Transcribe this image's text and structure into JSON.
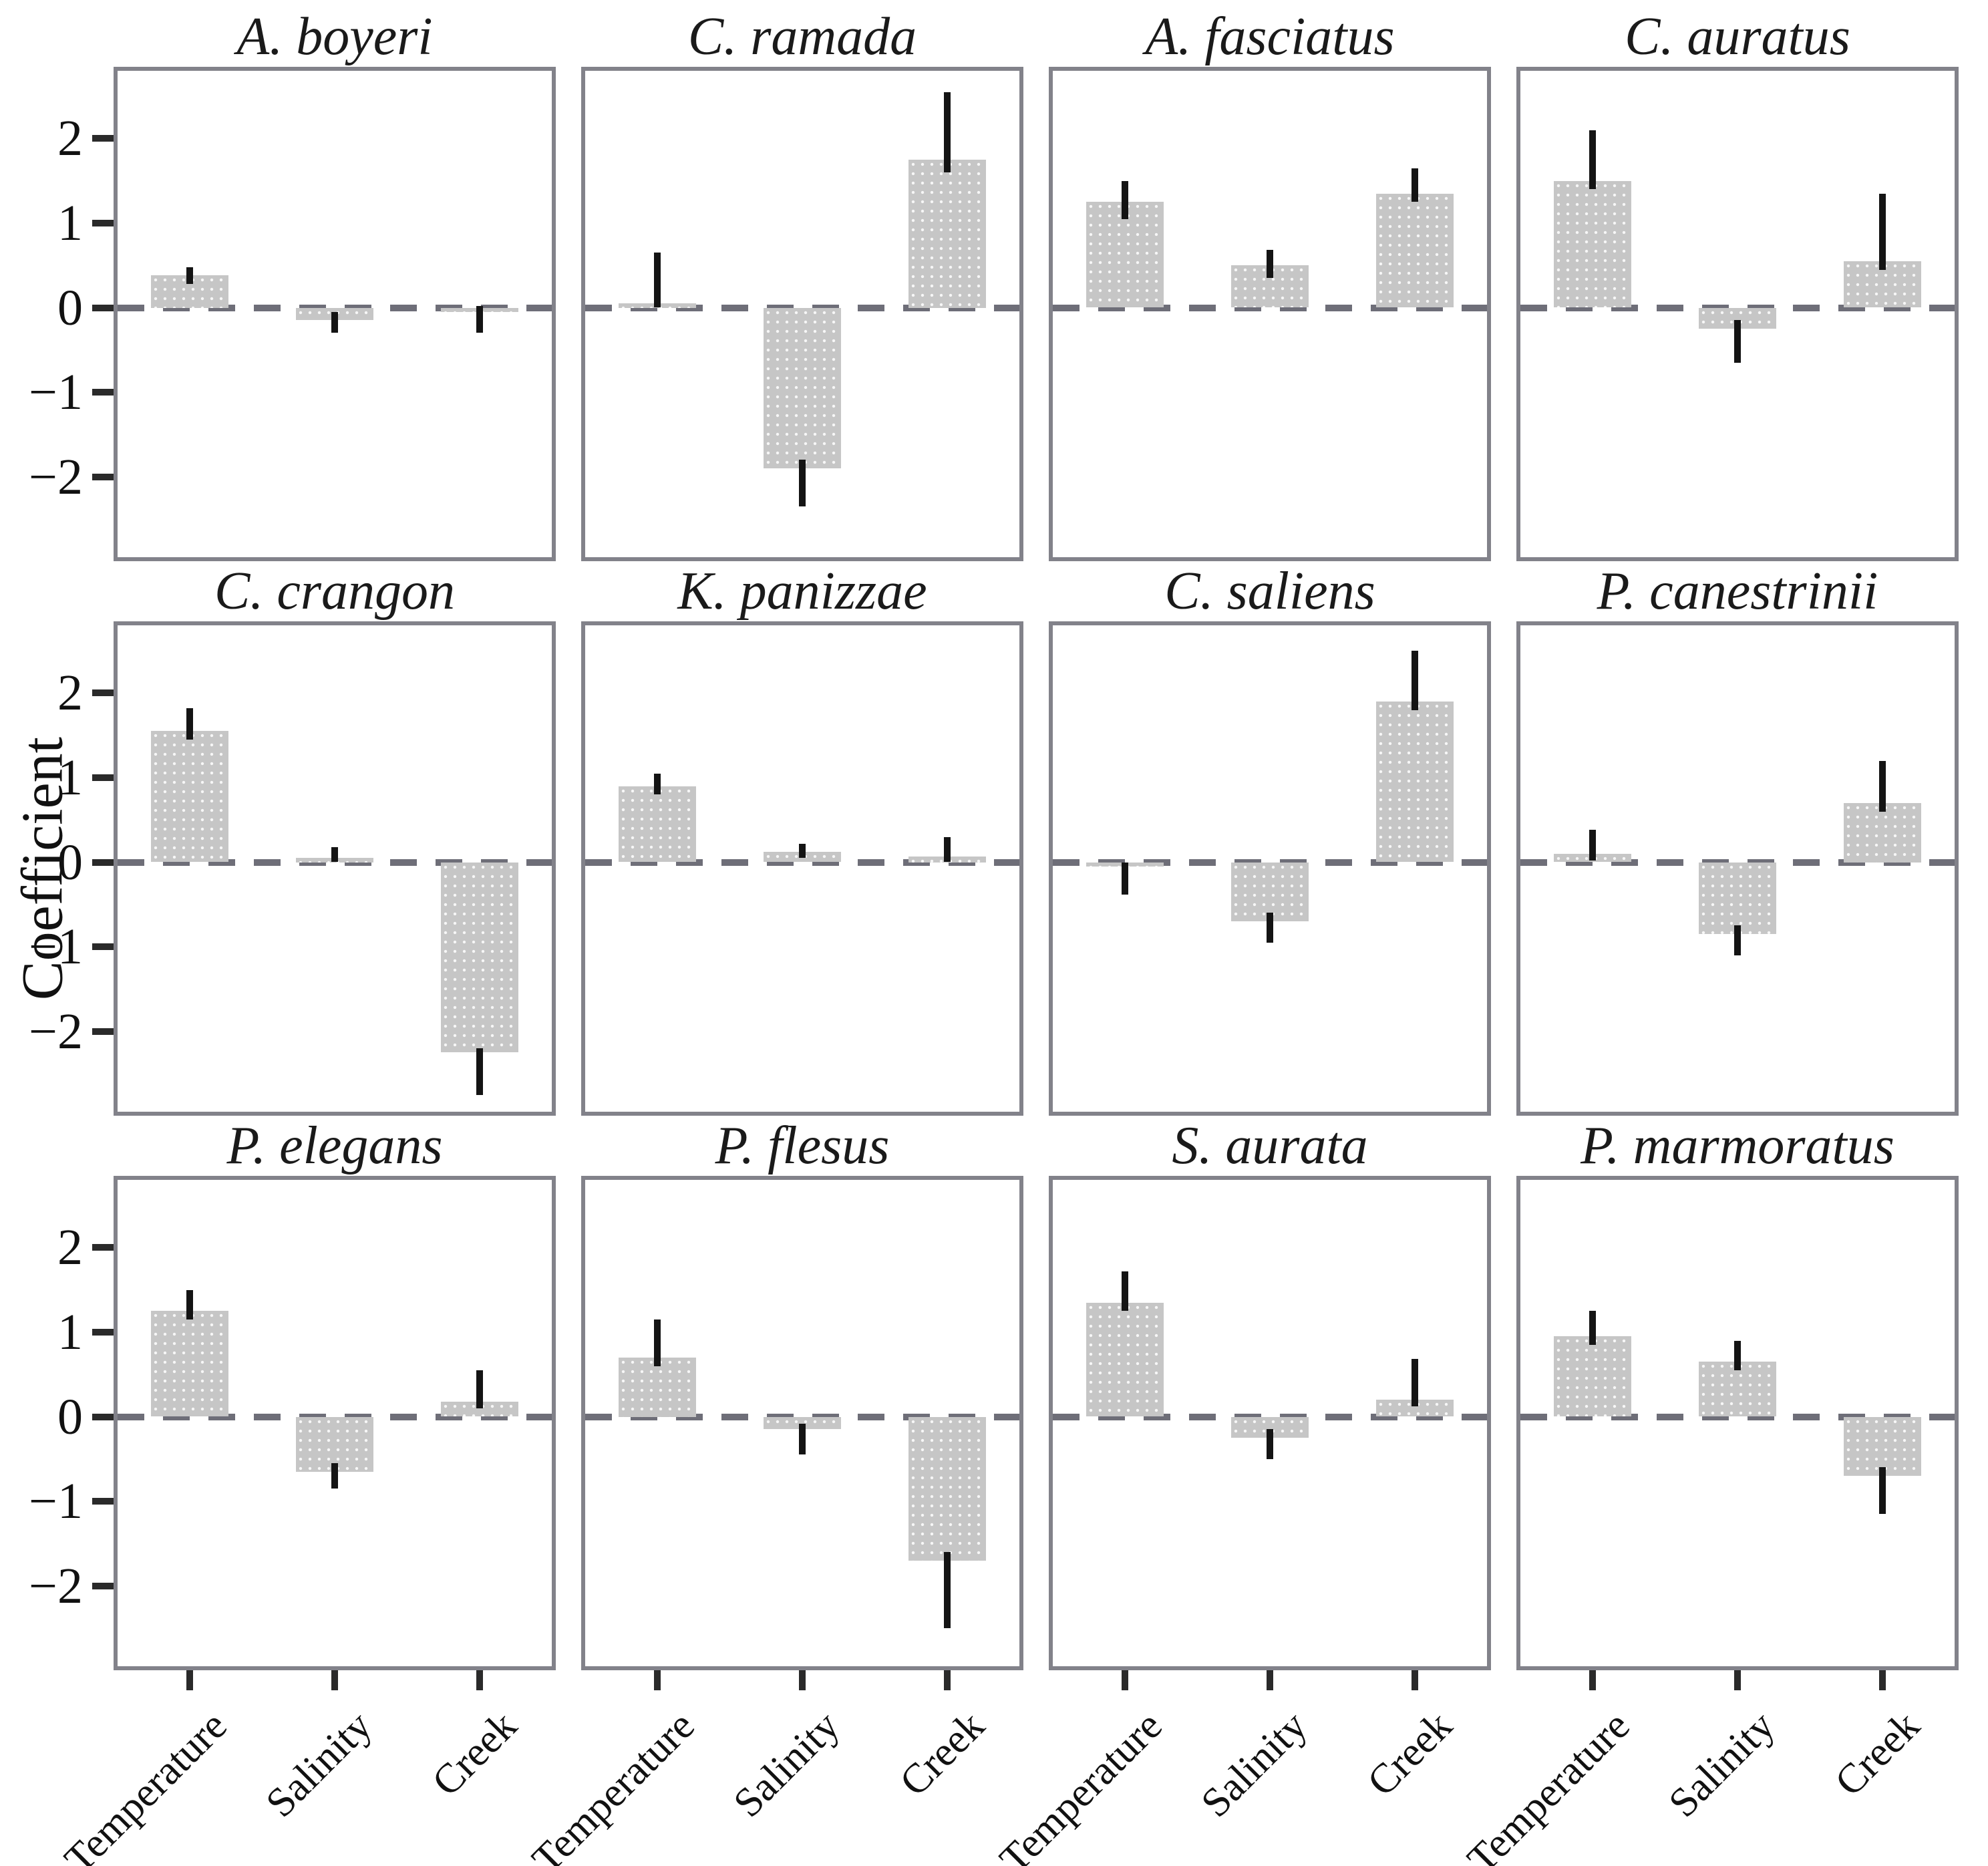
{
  "figure": {
    "ylabel": "Coefficient"
  },
  "chart_data": {
    "type": "bar",
    "title": "",
    "ylabel": "Coefficient",
    "xlabel": "",
    "categories": [
      "Temperature",
      "Salinity",
      "Creek"
    ],
    "layout": {
      "rows": 3,
      "cols": 4,
      "ylim": [
        -2.95,
        2.8
      ],
      "yticks": [
        2,
        1,
        0,
        -1,
        -2
      ],
      "ytick_labels": [
        "2",
        "1",
        "0",
        "−1",
        "−2"
      ],
      "grid": false,
      "zero_line": "dashed",
      "error_bars": true,
      "bar_color": "#c6c6c6",
      "error_color": "#141414",
      "zero_line_color": "#6e6e78",
      "panel_border_color": "#82828a"
    },
    "panels": [
      {
        "title": "A. boyeri",
        "values": [
          0.38,
          -0.15,
          -0.05
        ],
        "ci": [
          [
            0.28,
            0.48
          ],
          [
            -0.3,
            -0.05
          ],
          [
            -0.3,
            0.02
          ]
        ]
      },
      {
        "title": "C. ramada",
        "values": [
          0.05,
          -1.9,
          1.75
        ],
        "ci": [
          [
            0.0,
            0.65
          ],
          [
            -2.35,
            -1.8
          ],
          [
            1.6,
            2.55
          ]
        ]
      },
      {
        "title": "A. fasciatus",
        "values": [
          1.25,
          0.5,
          1.35
        ],
        "ci": [
          [
            1.05,
            1.5
          ],
          [
            0.35,
            0.68
          ],
          [
            1.25,
            1.65
          ]
        ]
      },
      {
        "title": "C. auratus",
        "values": [
          1.5,
          -0.25,
          0.55
        ],
        "ci": [
          [
            1.4,
            2.1
          ],
          [
            -0.65,
            -0.15
          ],
          [
            0.45,
            1.35
          ]
        ]
      },
      {
        "title": "C. crangon",
        "values": [
          1.55,
          0.05,
          -2.25
        ],
        "ci": [
          [
            1.45,
            1.82
          ],
          [
            0.0,
            0.18
          ],
          [
            -2.75,
            -2.2
          ]
        ]
      },
      {
        "title": "K. panizzae",
        "values": [
          0.9,
          0.12,
          0.07
        ],
        "ci": [
          [
            0.8,
            1.05
          ],
          [
            0.05,
            0.22
          ],
          [
            0.0,
            0.3
          ]
        ]
      },
      {
        "title": "C. saliens",
        "values": [
          -0.05,
          -0.7,
          1.9
        ],
        "ci": [
          [
            -0.38,
            0.0
          ],
          [
            -0.95,
            -0.6
          ],
          [
            1.8,
            2.5
          ]
        ]
      },
      {
        "title": "P. canestrinii",
        "values": [
          0.1,
          -0.85,
          0.7
        ],
        "ci": [
          [
            0.02,
            0.38
          ],
          [
            -1.1,
            -0.75
          ],
          [
            0.6,
            1.2
          ]
        ]
      },
      {
        "title": "P. elegans",
        "values": [
          1.25,
          -0.65,
          0.18
        ],
        "ci": [
          [
            1.15,
            1.5
          ],
          [
            -0.85,
            -0.55
          ],
          [
            0.1,
            0.55
          ]
        ]
      },
      {
        "title": "P. flesus",
        "values": [
          0.7,
          -0.15,
          -1.7
        ],
        "ci": [
          [
            0.6,
            1.15
          ],
          [
            -0.45,
            -0.08
          ],
          [
            -2.5,
            -1.6
          ]
        ]
      },
      {
        "title": "S. aurata",
        "values": [
          1.35,
          -0.25,
          0.2
        ],
        "ci": [
          [
            1.25,
            1.72
          ],
          [
            -0.5,
            -0.15
          ],
          [
            0.12,
            0.68
          ]
        ]
      },
      {
        "title": "P. marmoratus",
        "values": [
          0.95,
          0.65,
          -0.7
        ],
        "ci": [
          [
            0.85,
            1.25
          ],
          [
            0.55,
            0.9
          ],
          [
            -1.15,
            -0.6
          ]
        ]
      }
    ]
  }
}
